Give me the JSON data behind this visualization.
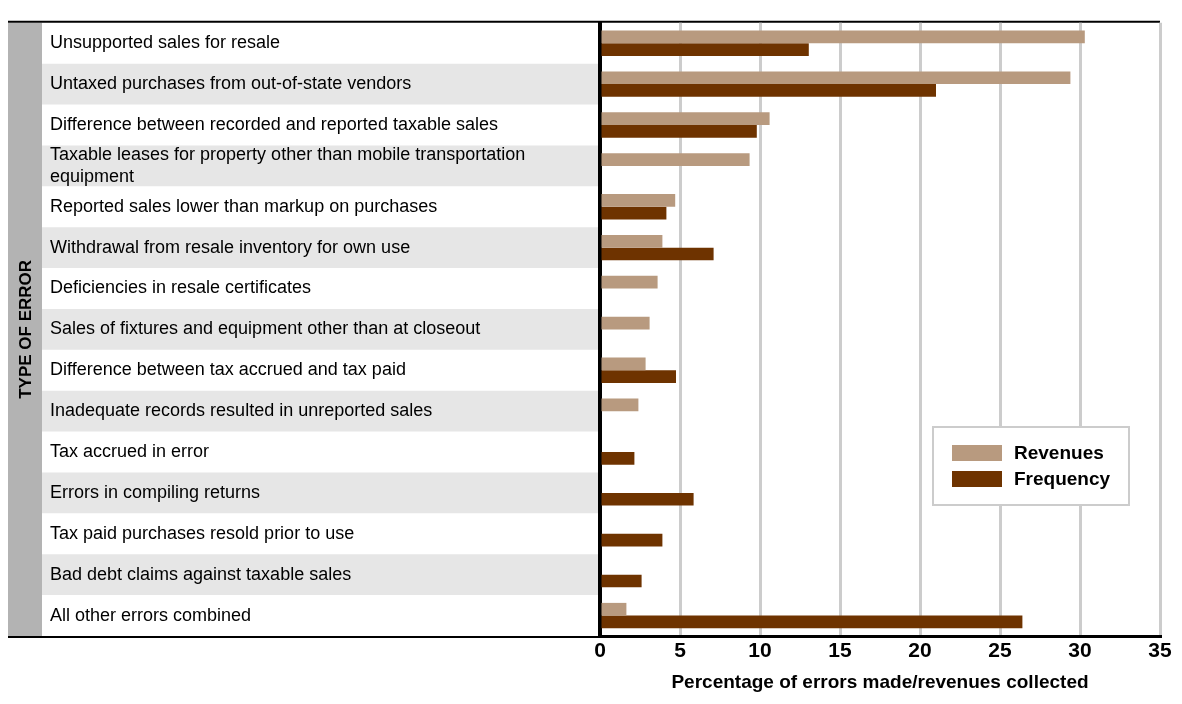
{
  "chart_data": {
    "type": "bar",
    "orientation": "horizontal",
    "xlabel": "Percentage of errors made/revenues collected",
    "ylabel": "TYPE OF ERROR",
    "categories": [
      "Unsupported sales for resale",
      "Untaxed purchases from out-of-state vendors",
      "Difference between recorded and reported taxable sales",
      "Taxable leases for property other than mobile transportation equipment",
      "Reported sales lower than markup on purchases",
      "Withdrawal from resale inventory for own use",
      "Deficiencies in resale certificates",
      "Sales of fixtures and equipment other than at closeout",
      "Difference between tax accrued and tax paid",
      "Inadequate records resulted in unreported sales",
      "Tax accrued in error",
      "Errors in compiling returns",
      "Tax paid purchases resold prior to use",
      "Bad debt claims against taxable sales",
      "All other errors combined"
    ],
    "series": [
      {
        "name": "Revenues",
        "color": "#b89a7f",
        "values": [
          30.3,
          29.4,
          10.6,
          9.35,
          4.7,
          3.9,
          3.6,
          3.1,
          2.85,
          2.4,
          null,
          null,
          null,
          null,
          1.65
        ]
      },
      {
        "name": "Frequency",
        "color": "#6e3300",
        "values": [
          13.05,
          21.0,
          9.8,
          null,
          4.15,
          7.1,
          null,
          null,
          4.75,
          null,
          2.15,
          5.85,
          3.9,
          2.6,
          26.4
        ]
      }
    ],
    "xlim": [
      0,
      35
    ],
    "xticks": [
      0,
      5,
      10,
      15,
      20,
      25,
      30,
      35
    ],
    "grid": "x",
    "legend": "bottom right"
  }
}
